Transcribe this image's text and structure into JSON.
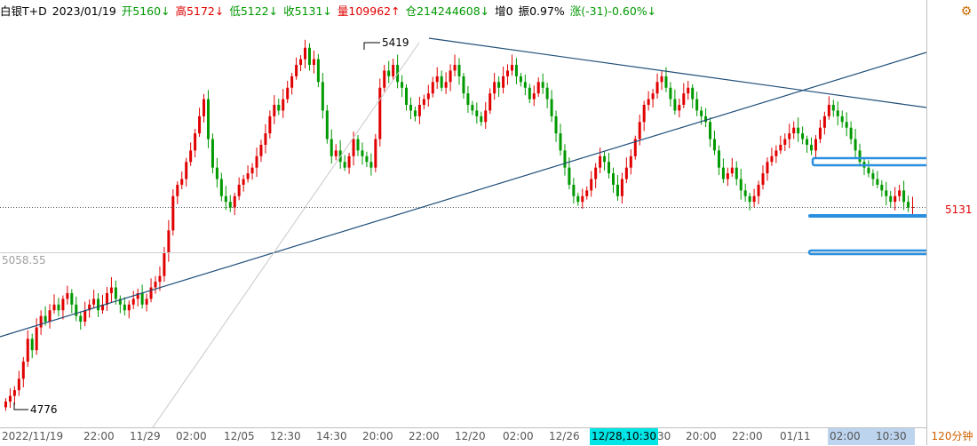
{
  "header": {
    "symbol": "白银T+D",
    "date": "2023/01/19",
    "open": "开5160↓",
    "high": "高5172↓",
    "low": "低5122↓",
    "close": "收5131↓",
    "volume": "量109962↑",
    "position": "仓214244608↓",
    "increase": "增0",
    "amplitude": "振0.97%",
    "change": "涨(-31)-0.60%↓"
  },
  "price_tag": "5131",
  "left_price_label": "5058.55",
  "high_label": "5419",
  "low_label": "4776",
  "x_axis": {
    "labels": [
      "2022/11/19",
      "22:00",
      "11/29",
      "02:00",
      "12/05",
      "12:30",
      "14:30",
      "20:00",
      "22:00",
      "12/20",
      "02:00",
      "12/26",
      "30",
      "20:00",
      "22:00",
      "01/11",
      "02:00",
      "10:30"
    ],
    "cursor_label": "12/28,10:30",
    "period": "120分钟"
  },
  "colors": {
    "up": "#e00000",
    "down": "#009900",
    "trendline": "#1f4e79",
    "highlight": "#2a8fe0",
    "cursor": "#00e5e5"
  },
  "icons": {
    "settings": "gear-icon"
  },
  "chart_data": {
    "type": "candlestick",
    "title": "白银T+D",
    "ylim": [
      4700,
      5500
    ],
    "last_close": 5131,
    "reference_level": 5058.55,
    "period_high": 5419,
    "period_low": 4776,
    "close_series": [
      4790,
      4800,
      4810,
      4830,
      4860,
      4900,
      4880,
      4920,
      4940,
      4930,
      4950,
      4960,
      4950,
      4970,
      4980,
      4960,
      4940,
      4930,
      4950,
      4960,
      4970,
      4950,
      4960,
      4980,
      4990,
      4970,
      4960,
      4950,
      4960,
      4970,
      4980,
      4960,
      4970,
      4990,
      5000,
      5010,
      5050,
      5090,
      5150,
      5170,
      5180,
      5210,
      5230,
      5260,
      5290,
      5320,
      5250,
      5200,
      5180,
      5150,
      5140,
      5130,
      5150,
      5170,
      5180,
      5190,
      5200,
      5220,
      5240,
      5260,
      5290,
      5310,
      5300,
      5320,
      5340,
      5360,
      5380,
      5390,
      5410,
      5380,
      5390,
      5350,
      5300,
      5250,
      5220,
      5230,
      5210,
      5200,
      5220,
      5250,
      5230,
      5220,
      5210,
      5200,
      5250,
      5340,
      5370,
      5360,
      5380,
      5350,
      5340,
      5310,
      5300,
      5290,
      5310,
      5320,
      5330,
      5350,
      5360,
      5340,
      5350,
      5370,
      5380,
      5360,
      5330,
      5310,
      5300,
      5290,
      5280,
      5300,
      5330,
      5350,
      5340,
      5360,
      5370,
      5380,
      5360,
      5350,
      5340,
      5320,
      5330,
      5350,
      5340,
      5320,
      5290,
      5260,
      5230,
      5200,
      5170,
      5150,
      5140,
      5150,
      5160,
      5180,
      5200,
      5220,
      5210,
      5190,
      5170,
      5150,
      5180,
      5200,
      5220,
      5250,
      5280,
      5310,
      5320,
      5330,
      5350,
      5360,
      5340,
      5320,
      5300,
      5310,
      5330,
      5340,
      5320,
      5300,
      5290,
      5280,
      5250,
      5230,
      5200,
      5180,
      5190,
      5200,
      5180,
      5160,
      5150,
      5140,
      5150,
      5170,
      5190,
      5210,
      5220,
      5230,
      5240,
      5250,
      5260,
      5270,
      5260,
      5250,
      5240,
      5230,
      5250,
      5270,
      5290,
      5310,
      5300,
      5290,
      5280,
      5270,
      5250,
      5230,
      5210,
      5200,
      5190,
      5180,
      5170,
      5160,
      5150,
      5140,
      5150,
      5160,
      5140,
      5130,
      5131
    ]
  }
}
